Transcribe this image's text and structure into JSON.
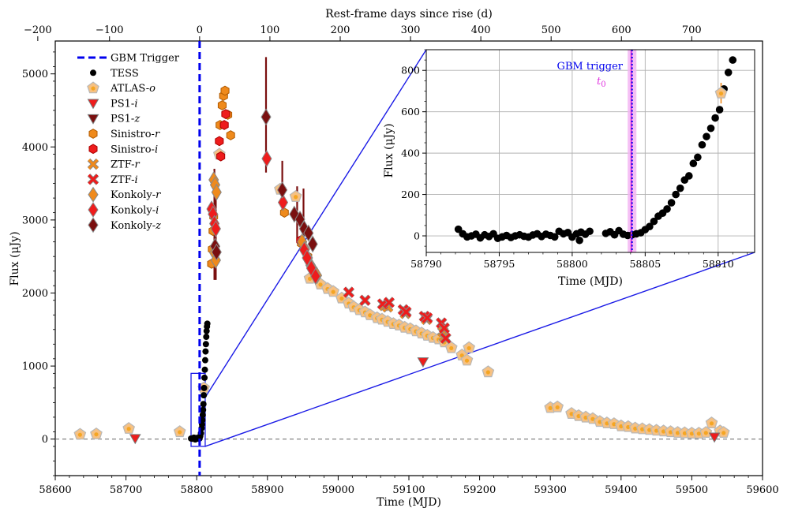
{
  "chart_data": {
    "type": "scatter",
    "main": {
      "xlabel": "Time (MJD)",
      "ylabel": "Flux (μJy)",
      "top_xlabel": "Rest-frame days since rise (d)",
      "xlim": [
        58600,
        59600
      ],
      "ylim": [
        -500,
        5450
      ],
      "xticks": [
        "58600",
        "58700",
        "58800",
        "58900",
        "59000",
        "59100",
        "59200",
        "59300",
        "59400",
        "59500",
        "59600"
      ],
      "yticks": [
        "0",
        "1000",
        "2000",
        "3000",
        "4000",
        "5000"
      ],
      "top_ticks": [
        "−200",
        "−100",
        "0",
        "100",
        "200",
        "300",
        "400",
        "500",
        "600",
        "700"
      ],
      "top_tick_positions_mjd": [
        58575.3,
        58676.7,
        58804.1,
        58903.5,
        59002.9,
        59102.3,
        59201.7,
        59301.1,
        59400.5,
        59499.9
      ],
      "gbm_trigger_mjd": 58804.1,
      "zoom_box": {
        "x": [
          58792,
          58812
        ],
        "y": [
          -100,
          900
        ]
      }
    },
    "legend": [
      {
        "key": "gbm",
        "label": "GBM Trigger",
        "italic": ""
      },
      {
        "key": "tess",
        "label": "TESS",
        "italic": ""
      },
      {
        "key": "atlas_o",
        "label": "ATLAS-",
        "italic": "o"
      },
      {
        "key": "ps1_i",
        "label": "PS1-",
        "italic": "i"
      },
      {
        "key": "ps1_z",
        "label": "PS1-",
        "italic": "z"
      },
      {
        "key": "sinistro_r",
        "label": "Sinistro-",
        "italic": "r"
      },
      {
        "key": "sinistro_i",
        "label": "Sinistro-",
        "italic": "i"
      },
      {
        "key": "ztf_r",
        "label": "ZTF-",
        "italic": "r"
      },
      {
        "key": "ztf_i",
        "label": "ZTF-",
        "italic": "i"
      },
      {
        "key": "konkoly_r",
        "label": "Konkoly-",
        "italic": "r"
      },
      {
        "key": "konkoly_i",
        "label": "Konkoly-",
        "italic": "i"
      },
      {
        "key": "konkoly_z",
        "label": "Konkoly-",
        "italic": "z"
      }
    ],
    "colors": {
      "gbm": "#0000ee",
      "tess": "#000000",
      "atlas_fill": "#f6c183",
      "atlas_edge": "#b8b8b8",
      "atlas_dot": "#f5a623",
      "orange": "#ef8a1c",
      "red": "#ee1c1c",
      "darkred": "#7a0f0f",
      "zoom": "#1a1ae6",
      "magenta": "#e033e0",
      "band": "#f2b5f2"
    },
    "series": {
      "tess": [
        [
          58792,
          8
        ],
        [
          58794,
          5
        ],
        [
          58796,
          20
        ],
        [
          58798,
          -5
        ],
        [
          58800,
          15
        ],
        [
          58802,
          10
        ],
        [
          58803,
          5
        ],
        [
          58804,
          8
        ],
        [
          58805,
          40
        ],
        [
          58806,
          80
        ],
        [
          58807,
          150
        ],
        [
          58807.5,
          200
        ],
        [
          58808,
          260
        ],
        [
          58808.5,
          330
        ],
        [
          58809,
          400
        ],
        [
          58809.5,
          480
        ],
        [
          58810,
          600
        ],
        [
          58810.5,
          700
        ],
        [
          58811,
          840
        ],
        [
          58811.5,
          950
        ],
        [
          58812,
          1080
        ],
        [
          58812.5,
          1200
        ],
        [
          58813,
          1300
        ],
        [
          58813.5,
          1400
        ],
        [
          58814,
          1480
        ],
        [
          58814.5,
          1540
        ],
        [
          58815,
          1580
        ]
      ],
      "atlas_o": [
        [
          58635,
          65
        ],
        [
          58658,
          70
        ],
        [
          58704,
          145
        ],
        [
          58776,
          100
        ],
        [
          58810,
          700
        ],
        [
          58832,
          3900
        ],
        [
          58918,
          3420
        ],
        [
          58940,
          3320
        ],
        [
          58960,
          2200
        ],
        [
          58975,
          2120
        ],
        [
          58985,
          2060
        ],
        [
          58993,
          2020
        ],
        [
          59005,
          1930
        ],
        [
          59015,
          1860
        ],
        [
          59022,
          1810
        ],
        [
          59030,
          1770
        ],
        [
          59038,
          1740
        ],
        [
          59045,
          1700
        ],
        [
          59055,
          1660
        ],
        [
          59062,
          1640
        ],
        [
          59070,
          1610
        ],
        [
          59078,
          1580
        ],
        [
          59086,
          1560
        ],
        [
          59094,
          1530
        ],
        [
          59102,
          1510
        ],
        [
          59110,
          1480
        ],
        [
          59118,
          1450
        ],
        [
          59126,
          1420
        ],
        [
          59134,
          1390
        ],
        [
          59142,
          1370
        ],
        [
          59150,
          1330
        ],
        [
          59160,
          1250
        ],
        [
          59175,
          1150
        ],
        [
          59185,
          1250
        ],
        [
          59182,
          1080
        ],
        [
          59212,
          920
        ],
        [
          59300,
          430
        ],
        [
          59310,
          440
        ],
        [
          59330,
          350
        ],
        [
          59340,
          320
        ],
        [
          59350,
          300
        ],
        [
          59360,
          280
        ],
        [
          59370,
          240
        ],
        [
          59380,
          220
        ],
        [
          59390,
          210
        ],
        [
          59400,
          180
        ],
        [
          59410,
          170
        ],
        [
          59420,
          150
        ],
        [
          59430,
          140
        ],
        [
          59440,
          130
        ],
        [
          59450,
          120
        ],
        [
          59460,
          110
        ],
        [
          59470,
          100
        ],
        [
          59480,
          90
        ],
        [
          59490,
          85
        ],
        [
          59500,
          80
        ],
        [
          59510,
          80
        ],
        [
          59520,
          90
        ],
        [
          59528,
          220
        ],
        [
          59540,
          110
        ],
        [
          59545,
          90
        ]
      ],
      "ps1_i": [
        [
          58713,
          10
        ],
        [
          59120,
          1060
        ],
        [
          59532,
          30
        ]
      ],
      "sinistro_r": [
        [
          58821,
          2400
        ],
        [
          58822,
          2600
        ],
        [
          58823,
          2850
        ],
        [
          58824,
          3050
        ],
        [
          58833,
          4300
        ],
        [
          58836,
          4570
        ],
        [
          58838,
          4700
        ],
        [
          58840,
          4770
        ],
        [
          58844,
          4440
        ],
        [
          58848,
          4160
        ],
        [
          58924,
          3100
        ],
        [
          58948,
          2680
        ],
        [
          58957,
          2500
        ]
      ],
      "sinistro_i": [
        [
          58832,
          4080
        ],
        [
          58839,
          4300
        ],
        [
          58834,
          3870
        ],
        [
          58841,
          4450
        ],
        [
          58947,
          2720
        ]
      ],
      "ztf_r": [
        [
          59065,
          1830
        ],
        [
          59070,
          1810
        ],
        [
          59095,
          1720
        ],
        [
          59125,
          1640
        ],
        [
          59148,
          1470
        ],
        [
          59150,
          1400
        ]
      ],
      "ztf_i": [
        [
          59015,
          2010
        ],
        [
          59038,
          1900
        ],
        [
          59063,
          1850
        ],
        [
          59072,
          1870
        ],
        [
          59092,
          1770
        ],
        [
          59096,
          1740
        ],
        [
          59122,
          1680
        ],
        [
          59126,
          1660
        ],
        [
          59146,
          1590
        ],
        [
          59150,
          1520
        ],
        [
          59152,
          1380
        ]
      ],
      "konkoly_r": [
        [
          58824,
          3550
        ],
        [
          58826,
          3480
        ],
        [
          58828,
          3380
        ],
        [
          58825,
          2550
        ],
        [
          58827,
          2450
        ],
        [
          58949,
          2700
        ],
        [
          58953,
          2600
        ],
        [
          58957,
          2480
        ],
        [
          58961,
          2380
        ],
        [
          58966,
          2300
        ],
        [
          58970,
          2240
        ]
      ],
      "konkoly_i": [
        [
          58821,
          3150
        ],
        [
          58823,
          3080
        ],
        [
          58825,
          2950
        ],
        [
          58827,
          2880
        ],
        [
          58899,
          3840
        ],
        [
          58922,
          3240
        ],
        [
          58952,
          2590
        ],
        [
          58956,
          2480
        ],
        [
          58962,
          2340
        ],
        [
          58968,
          2230
        ]
      ],
      "konkoly_z": [
        [
          58826,
          2640
        ],
        [
          58828,
          2560
        ],
        [
          58898,
          4410
        ],
        [
          58921,
          3410
        ],
        [
          58938,
          3080
        ],
        [
          58946,
          3010
        ],
        [
          58952,
          2880
        ],
        [
          58958,
          2820
        ],
        [
          58964,
          2670
        ]
      ],
      "errorbars": [
        [
          58825,
          2180,
          3700
        ],
        [
          58827,
          2180,
          3600
        ],
        [
          58898,
          3650,
          5230
        ],
        [
          58921,
          3120,
          3810
        ],
        [
          58942,
          2700,
          3460
        ],
        [
          58951,
          2820,
          3430
        ]
      ]
    },
    "inset": {
      "xlabel": "Time (MJD)",
      "ylabel": "Flux (μJy)",
      "xlim": [
        58790,
        58812.5
      ],
      "ylim": [
        -80,
        900
      ],
      "xticks": [
        "58790",
        "58795",
        "58800",
        "58805",
        "58810"
      ],
      "yticks": [
        "0",
        "200",
        "400",
        "600",
        "800"
      ],
      "gbm_label": "GBM trigger",
      "t0_label": "t",
      "t0_sub": "0",
      "gbm_mjd": 58804.1,
      "t0_mjd": 58804.05,
      "t0_band": [
        58803.8,
        58804.4
      ],
      "tess": [
        [
          58792.2,
          32
        ],
        [
          58792.5,
          10
        ],
        [
          58792.8,
          -5
        ],
        [
          58793.1,
          0
        ],
        [
          58793.4,
          8
        ],
        [
          58793.7,
          -10
        ],
        [
          58794.0,
          5
        ],
        [
          58794.3,
          -3
        ],
        [
          58794.6,
          10
        ],
        [
          58794.9,
          -12
        ],
        [
          58795.2,
          -5
        ],
        [
          58795.5,
          2
        ],
        [
          58795.8,
          -8
        ],
        [
          58796.1,
          0
        ],
        [
          58796.4,
          5
        ],
        [
          58796.7,
          -2
        ],
        [
          58797.0,
          -6
        ],
        [
          58797.3,
          4
        ],
        [
          58797.6,
          10
        ],
        [
          58797.9,
          -3
        ],
        [
          58798.2,
          8
        ],
        [
          58798.5,
          2
        ],
        [
          58798.8,
          -5
        ],
        [
          58799.1,
          22
        ],
        [
          58799.4,
          10
        ],
        [
          58799.7,
          16
        ],
        [
          58800.0,
          -6
        ],
        [
          58800.3,
          10
        ],
        [
          58800.6,
          18
        ],
        [
          58800.9,
          8
        ],
        [
          58801.2,
          22
        ],
        [
          58800.5,
          -22
        ],
        [
          58802.3,
          12
        ],
        [
          58802.6,
          20
        ],
        [
          58802.9,
          5
        ],
        [
          58803.2,
          25
        ],
        [
          58803.5,
          8
        ],
        [
          58803.8,
          2
        ],
        [
          58804.1,
          5
        ],
        [
          58804.4,
          10
        ],
        [
          58804.7,
          15
        ],
        [
          58805.0,
          30
        ],
        [
          58805.3,
          45
        ],
        [
          58805.6,
          70
        ],
        [
          58805.9,
          95
        ],
        [
          58806.2,
          110
        ],
        [
          58806.5,
          130
        ],
        [
          58806.8,
          160
        ],
        [
          58807.1,
          200
        ],
        [
          58807.4,
          230
        ],
        [
          58807.7,
          270
        ],
        [
          58808.0,
          290
        ],
        [
          58808.3,
          350
        ],
        [
          58808.6,
          380
        ],
        [
          58808.9,
          440
        ],
        [
          58809.2,
          480
        ],
        [
          58809.5,
          520
        ],
        [
          58809.8,
          570
        ],
        [
          58810.1,
          610
        ],
        [
          58810.4,
          710
        ],
        [
          58810.7,
          790
        ],
        [
          58811.0,
          850
        ],
        [
          58811.3,
          910
        ]
      ],
      "atlas": [
        [
          58810.2,
          690
        ]
      ],
      "atlas_err": [
        [
          58810.2,
          640,
          740
        ]
      ]
    }
  }
}
